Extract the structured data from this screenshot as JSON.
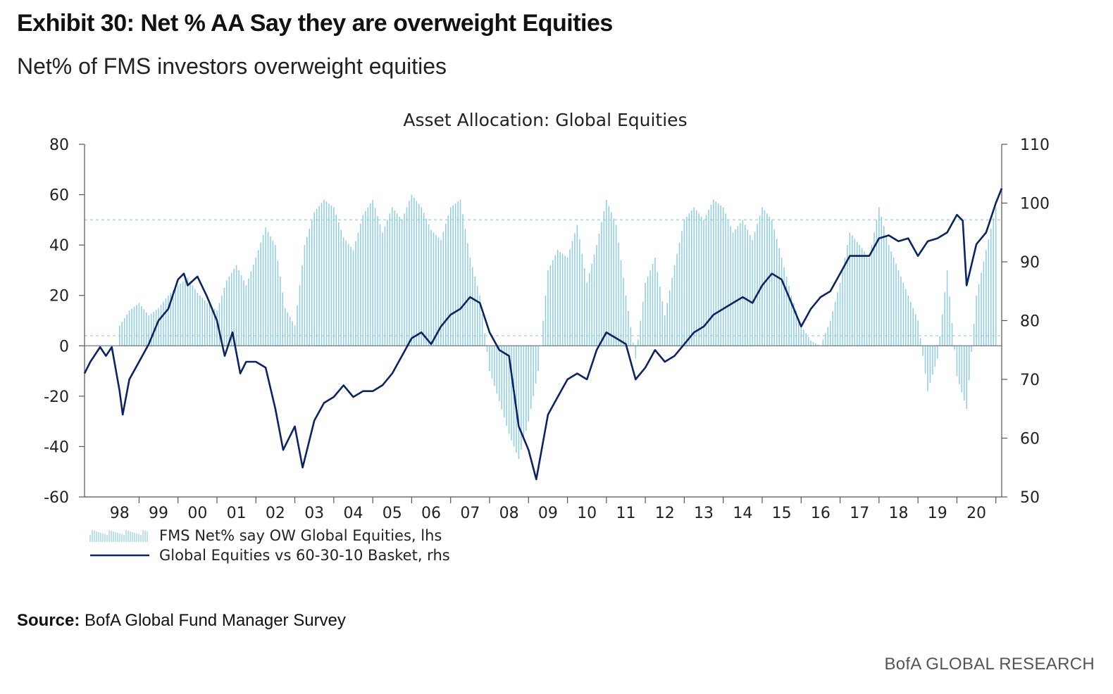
{
  "header": {
    "title": "Exhibit 30: Net % AA Say they are overweight Equities",
    "subtitle": "Net% of FMS investors overweight equities"
  },
  "footer": {
    "source_label": "Source:",
    "source_text": "BofA Global Fund Manager Survey",
    "brand": "BofA GLOBAL RESEARCH"
  },
  "colors": {
    "bars": "#8ccde3",
    "line": "#0c2461",
    "axis": "#555555",
    "ref_line": "#9fd6e6"
  },
  "chart_data": {
    "type": "bar",
    "title": "Asset Allocation: Global Equities",
    "x_labels": [
      "98",
      "99",
      "00",
      "01",
      "02",
      "03",
      "04",
      "05",
      "06",
      "07",
      "08",
      "09",
      "10",
      "11",
      "12",
      "13",
      "14",
      "15",
      "16",
      "17",
      "18",
      "19",
      "20"
    ],
    "x_range": [
      1997.6,
      2021.15
    ],
    "y_left": {
      "range": [
        -60,
        80
      ],
      "ticks": [
        80,
        60,
        40,
        20,
        0,
        -20,
        -40,
        -60
      ]
    },
    "y_right": {
      "range": [
        50,
        110
      ],
      "ticks": [
        110,
        100,
        90,
        80,
        70,
        60,
        50
      ]
    },
    "reference_lines_lhs": [
      50,
      4
    ],
    "series": [
      {
        "name": "FMS Net% say OW Global Equities, lhs",
        "type": "bar",
        "axis": "left",
        "points": [
          [
            1998.5,
            8
          ],
          [
            1998.75,
            14
          ],
          [
            1999.0,
            17
          ],
          [
            1999.25,
            12
          ],
          [
            1999.5,
            15
          ],
          [
            1999.75,
            20
          ],
          [
            2000.0,
            24
          ],
          [
            2000.25,
            27
          ],
          [
            2000.5,
            21
          ],
          [
            2000.75,
            17
          ],
          [
            2001.0,
            14
          ],
          [
            2001.25,
            26
          ],
          [
            2001.5,
            32
          ],
          [
            2001.75,
            24
          ],
          [
            2002.0,
            35
          ],
          [
            2002.25,
            47
          ],
          [
            2002.5,
            40
          ],
          [
            2002.75,
            15
          ],
          [
            2003.0,
            8
          ],
          [
            2003.25,
            40
          ],
          [
            2003.5,
            53
          ],
          [
            2003.75,
            58
          ],
          [
            2004.0,
            55
          ],
          [
            2004.25,
            43
          ],
          [
            2004.5,
            38
          ],
          [
            2004.75,
            52
          ],
          [
            2005.0,
            58
          ],
          [
            2005.25,
            45
          ],
          [
            2005.5,
            55
          ],
          [
            2005.75,
            50
          ],
          [
            2006.0,
            60
          ],
          [
            2006.25,
            55
          ],
          [
            2006.5,
            46
          ],
          [
            2006.75,
            42
          ],
          [
            2007.0,
            55
          ],
          [
            2007.25,
            58
          ],
          [
            2007.5,
            35
          ],
          [
            2007.75,
            20
          ],
          [
            2008.0,
            -10
          ],
          [
            2008.25,
            -22
          ],
          [
            2008.5,
            -35
          ],
          [
            2008.75,
            -45
          ],
          [
            2009.0,
            -30
          ],
          [
            2009.25,
            -10
          ],
          [
            2009.5,
            30
          ],
          [
            2009.75,
            38
          ],
          [
            2010.0,
            35
          ],
          [
            2010.25,
            48
          ],
          [
            2010.5,
            25
          ],
          [
            2010.75,
            40
          ],
          [
            2011.0,
            58
          ],
          [
            2011.25,
            48
          ],
          [
            2011.5,
            20
          ],
          [
            2011.75,
            -5
          ],
          [
            2012.0,
            25
          ],
          [
            2012.25,
            35
          ],
          [
            2012.5,
            12
          ],
          [
            2012.75,
            32
          ],
          [
            2013.0,
            50
          ],
          [
            2013.25,
            55
          ],
          [
            2013.5,
            50
          ],
          [
            2013.75,
            58
          ],
          [
            2014.0,
            55
          ],
          [
            2014.25,
            45
          ],
          [
            2014.5,
            50
          ],
          [
            2014.75,
            42
          ],
          [
            2015.0,
            55
          ],
          [
            2015.25,
            50
          ],
          [
            2015.5,
            35
          ],
          [
            2015.75,
            20
          ],
          [
            2016.0,
            8
          ],
          [
            2016.25,
            2
          ],
          [
            2016.5,
            0
          ],
          [
            2016.75,
            10
          ],
          [
            2017.0,
            25
          ],
          [
            2017.25,
            45
          ],
          [
            2017.5,
            40
          ],
          [
            2017.75,
            35
          ],
          [
            2018.0,
            55
          ],
          [
            2018.25,
            40
          ],
          [
            2018.5,
            30
          ],
          [
            2018.75,
            20
          ],
          [
            2019.0,
            10
          ],
          [
            2019.25,
            -18
          ],
          [
            2019.5,
            -5
          ],
          [
            2019.75,
            30
          ],
          [
            2020.0,
            -12
          ],
          [
            2020.25,
            -25
          ],
          [
            2020.5,
            20
          ],
          [
            2020.75,
            38
          ],
          [
            2021.0,
            55
          ]
        ]
      },
      {
        "name": "Global Equities vs 60-30-10 Basket, rhs",
        "type": "line",
        "axis": "right",
        "points": [
          [
            1997.6,
            71
          ],
          [
            1997.75,
            73
          ],
          [
            1998.0,
            75.5
          ],
          [
            1998.15,
            74
          ],
          [
            1998.3,
            75.5
          ],
          [
            1998.5,
            68
          ],
          [
            1998.58,
            64
          ],
          [
            1998.75,
            70
          ],
          [
            1999.0,
            73
          ],
          [
            1999.25,
            76
          ],
          [
            1999.5,
            80
          ],
          [
            1999.75,
            82
          ],
          [
            2000.0,
            87
          ],
          [
            2000.15,
            88
          ],
          [
            2000.25,
            86
          ],
          [
            2000.5,
            87.5
          ],
          [
            2000.75,
            84
          ],
          [
            2001.0,
            80
          ],
          [
            2001.2,
            74
          ],
          [
            2001.4,
            78
          ],
          [
            2001.6,
            71
          ],
          [
            2001.75,
            73
          ],
          [
            2002.0,
            73
          ],
          [
            2002.25,
            72
          ],
          [
            2002.5,
            65
          ],
          [
            2002.7,
            58
          ],
          [
            2003.0,
            62
          ],
          [
            2003.2,
            55
          ],
          [
            2003.5,
            63
          ],
          [
            2003.75,
            66
          ],
          [
            2004.0,
            67
          ],
          [
            2004.25,
            69
          ],
          [
            2004.5,
            67
          ],
          [
            2004.75,
            68
          ],
          [
            2005.0,
            68
          ],
          [
            2005.25,
            69
          ],
          [
            2005.5,
            71
          ],
          [
            2005.75,
            74
          ],
          [
            2006.0,
            77
          ],
          [
            2006.25,
            78
          ],
          [
            2006.5,
            76
          ],
          [
            2006.75,
            79
          ],
          [
            2007.0,
            81
          ],
          [
            2007.25,
            82
          ],
          [
            2007.5,
            84
          ],
          [
            2007.75,
            83
          ],
          [
            2008.0,
            78
          ],
          [
            2008.25,
            75
          ],
          [
            2008.5,
            74
          ],
          [
            2008.75,
            62
          ],
          [
            2009.0,
            58
          ],
          [
            2009.2,
            53
          ],
          [
            2009.5,
            64
          ],
          [
            2009.75,
            67
          ],
          [
            2010.0,
            70
          ],
          [
            2010.25,
            71
          ],
          [
            2010.5,
            70
          ],
          [
            2010.75,
            75
          ],
          [
            2011.0,
            78
          ],
          [
            2011.25,
            77
          ],
          [
            2011.5,
            76
          ],
          [
            2011.75,
            70
          ],
          [
            2012.0,
            72
          ],
          [
            2012.25,
            75
          ],
          [
            2012.5,
            73
          ],
          [
            2012.75,
            74
          ],
          [
            2013.0,
            76
          ],
          [
            2013.25,
            78
          ],
          [
            2013.5,
            79
          ],
          [
            2013.75,
            81
          ],
          [
            2014.0,
            82
          ],
          [
            2014.25,
            83
          ],
          [
            2014.5,
            84
          ],
          [
            2014.75,
            83
          ],
          [
            2015.0,
            86
          ],
          [
            2015.25,
            88
          ],
          [
            2015.5,
            87
          ],
          [
            2015.75,
            83
          ],
          [
            2016.0,
            79
          ],
          [
            2016.25,
            82
          ],
          [
            2016.5,
            84
          ],
          [
            2016.75,
            85
          ],
          [
            2017.0,
            88
          ],
          [
            2017.25,
            91
          ],
          [
            2017.5,
            91
          ],
          [
            2017.75,
            91
          ],
          [
            2018.0,
            94
          ],
          [
            2018.25,
            94.5
          ],
          [
            2018.5,
            93.5
          ],
          [
            2018.75,
            94
          ],
          [
            2019.0,
            91
          ],
          [
            2019.25,
            93.5
          ],
          [
            2019.5,
            94
          ],
          [
            2019.75,
            95
          ],
          [
            2020.0,
            98
          ],
          [
            2020.15,
            97
          ],
          [
            2020.25,
            86
          ],
          [
            2020.5,
            93
          ],
          [
            2020.75,
            95
          ],
          [
            2021.0,
            100
          ],
          [
            2021.15,
            102.5
          ]
        ]
      }
    ],
    "legend": {
      "position": "bottom-left",
      "entries": [
        "FMS Net% say OW Global Equities, lhs",
        "Global Equities vs 60-30-10 Basket, rhs"
      ]
    }
  }
}
